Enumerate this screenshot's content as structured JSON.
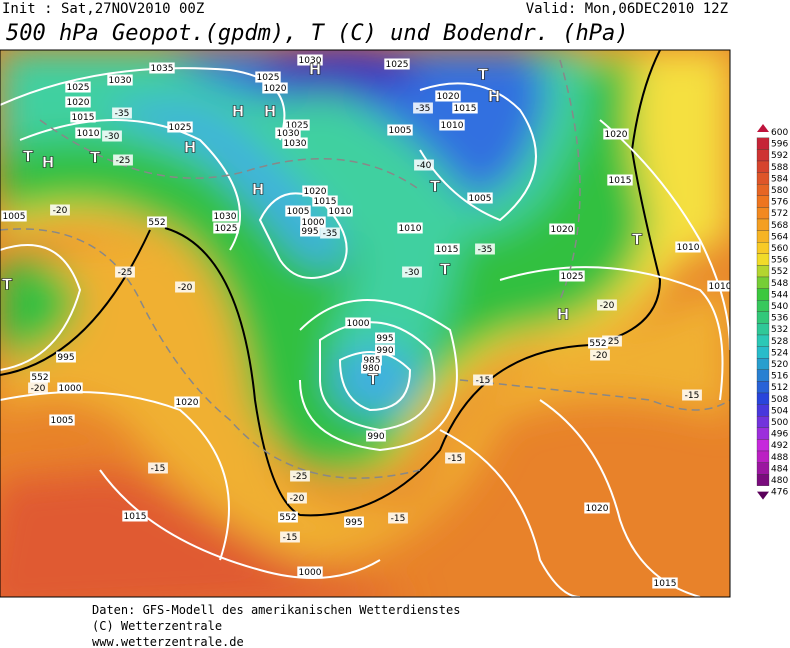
{
  "header": {
    "init": "Init : Sat,27NOV2010 00Z",
    "valid": "Valid: Mon,06DEC2010 12Z",
    "title": "500 hPa Geopot.(gpdm), T (C) und Bodendr. (hPa)"
  },
  "legend": [
    "600",
    "596",
    "592",
    "588",
    "584",
    "580",
    "576",
    "572",
    "568",
    "564",
    "560",
    "556",
    "552",
    "548",
    "544",
    "540",
    "536",
    "532",
    "528",
    "524",
    "520",
    "516",
    "512",
    "508",
    "504",
    "500",
    "496",
    "492",
    "488",
    "484",
    "480",
    "476"
  ],
  "map_labels": [
    "1030",
    "1035",
    "1025",
    "1020",
    "1015",
    "1010",
    "-35",
    "-30",
    "-25",
    "1025",
    "1025",
    "1020",
    "1030",
    "1025",
    "-35",
    "1020",
    "1015",
    "1010",
    "1005",
    "-40",
    "1025",
    "1030",
    "1030",
    "1020",
    "1015",
    "1010",
    "1005",
    "1000",
    "995",
    "-35",
    "1030",
    "1025",
    "1010",
    "1015",
    "-35",
    "1005",
    "-30",
    "1020",
    "1025",
    "1020",
    "1015",
    "1010",
    "1010",
    "-20",
    "-25",
    "-20",
    "1005",
    "-20",
    "-25",
    "-20",
    "995",
    "1000",
    "-20",
    "1005",
    "1020",
    "1000",
    "995",
    "990",
    "985",
    "980",
    "-15",
    "-15",
    "990",
    "-15",
    "-15",
    "-25",
    "-20",
    "1015",
    "995",
    "-15",
    "-15",
    "1020",
    "1000",
    "1015",
    "552",
    "552",
    "552",
    "552",
    "H",
    "T",
    "H",
    "H",
    "H",
    "T",
    "H",
    "T",
    "H",
    "H",
    "T",
    "T",
    "H",
    "T",
    "T",
    "T"
  ],
  "footer": [
    "Daten: GFS-Modell des amerikanischen Wetterdienstes",
    "(C) Wetterzentrale",
    "www.wetterzentrale.de"
  ]
}
